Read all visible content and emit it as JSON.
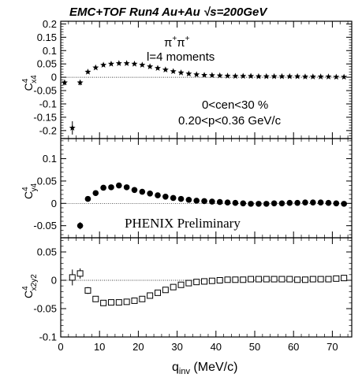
{
  "chart_data": {
    "type": "scatter",
    "title": "EMC+TOF Run4 Au+Au √s=200GeV",
    "xlabel": "q",
    "xlabel_sub": "inv",
    "xlabel_unit": " (MeV/c)",
    "xlim": [
      0,
      75
    ],
    "xticks": [
      "0",
      "10",
      "20",
      "30",
      "40",
      "50",
      "60",
      "70"
    ],
    "panels": [
      {
        "name": "Cx4",
        "ylabel_main": "C",
        "ylabel_sup": "4",
        "ylabel_sub": "x4",
        "ylim": [
          -0.23,
          0.21
        ],
        "yticks": [
          0.2,
          0.15,
          0.1,
          0.05,
          0,
          -0.05,
          -0.1,
          -0.15,
          -0.2
        ],
        "ytick_labels": [
          "0.2",
          "0.15",
          "0.1",
          "0.05",
          "0",
          "-0.05",
          "-0.1",
          "-0.15",
          "-0.2"
        ],
        "marker": "star",
        "x": [
          1,
          3,
          5,
          7,
          9,
          11,
          13,
          15,
          17,
          19,
          21,
          23,
          25,
          27,
          29,
          31,
          33,
          35,
          37,
          39,
          41,
          43,
          45,
          47,
          49,
          51,
          53,
          55,
          57,
          59,
          61,
          63,
          65,
          67,
          69,
          71,
          73
        ],
        "y": [
          -0.02,
          -0.19,
          -0.02,
          0.02,
          0.036,
          0.046,
          0.05,
          0.052,
          0.052,
          0.05,
          0.046,
          0.04,
          0.034,
          0.028,
          0.022,
          0.017,
          0.013,
          0.01,
          0.008,
          0.007,
          0.006,
          0.005,
          0.004,
          0.004,
          0.004,
          0.003,
          0.003,
          0.003,
          0.003,
          0.003,
          0.003,
          0.002,
          0.002,
          0.002,
          0.002,
          0.001,
          0.001
        ],
        "yerr": [
          0.01,
          0.025,
          0.01,
          0.006,
          0.005,
          0.004,
          0.004,
          0.003,
          0.003,
          0.003,
          0.003,
          0.003,
          0.003,
          0.003,
          0.003,
          0.003,
          0.003,
          0.003,
          0.003,
          0.003,
          0.003,
          0.003,
          0.003,
          0.003,
          0.003,
          0.003,
          0.003,
          0.003,
          0.003,
          0.003,
          0.003,
          0.003,
          0.003,
          0.003,
          0.003,
          0.003,
          0.003
        ]
      },
      {
        "name": "Cy4",
        "ylabel_main": "C",
        "ylabel_sup": "4",
        "ylabel_sub": "y4",
        "ylim": [
          -0.077,
          0.145
        ],
        "yticks": [
          0.1,
          0.05,
          0,
          -0.05
        ],
        "ytick_labels": [
          "0.1",
          "0.05",
          "0",
          "-0.05"
        ],
        "marker": "circle",
        "x": [
          5,
          7,
          9,
          11,
          13,
          15,
          17,
          19,
          21,
          23,
          25,
          27,
          29,
          31,
          33,
          35,
          37,
          39,
          41,
          43,
          45,
          47,
          49,
          51,
          53,
          55,
          57,
          59,
          61,
          63,
          65,
          67,
          69,
          71,
          73
        ],
        "y": [
          -0.05,
          0.01,
          0.023,
          0.035,
          0.036,
          0.04,
          0.036,
          0.03,
          0.026,
          0.022,
          0.018,
          0.015,
          0.012,
          0.01,
          0.008,
          0.006,
          0.005,
          0.004,
          0.003,
          0.002,
          0.001,
          0,
          -0.001,
          -0.001,
          -0.001,
          0,
          0,
          0.001,
          0.001,
          0.002,
          0.002,
          0.002,
          0.001,
          0,
          -0.001
        ],
        "yerr": [
          0.008,
          0.005,
          0.004,
          0.003,
          0.003,
          0.003,
          0.003,
          0.003,
          0.003,
          0.003,
          0.003,
          0.003,
          0.003,
          0.003,
          0.003,
          0.003,
          0.003,
          0.003,
          0.003,
          0.003,
          0.003,
          0.003,
          0.003,
          0.003,
          0.003,
          0.003,
          0.003,
          0.003,
          0.003,
          0.003,
          0.003,
          0.003,
          0.003,
          0.003,
          0.003
        ]
      },
      {
        "name": "Cx2y2",
        "ylabel_main": "C",
        "ylabel_sup": "4",
        "ylabel_sub": "x2y2",
        "ylim": [
          -0.1,
          0.075
        ],
        "yticks": [
          0.05,
          0,
          -0.05,
          -0.1
        ],
        "ytick_labels": [
          "0.05",
          "0",
          "-0.05",
          "-0.1"
        ],
        "marker": "square",
        "x": [
          3,
          5,
          7,
          9,
          11,
          13,
          15,
          17,
          19,
          21,
          23,
          25,
          27,
          29,
          31,
          33,
          35,
          37,
          39,
          41,
          43,
          45,
          47,
          49,
          51,
          53,
          55,
          57,
          59,
          61,
          63,
          65,
          67,
          69,
          71,
          73
        ],
        "y": [
          0.005,
          0.012,
          -0.018,
          -0.033,
          -0.04,
          -0.039,
          -0.039,
          -0.038,
          -0.036,
          -0.033,
          -0.027,
          -0.022,
          -0.017,
          -0.012,
          -0.008,
          -0.005,
          -0.003,
          -0.002,
          -0.001,
          0,
          0.001,
          0.001,
          0.001,
          0.002,
          0.002,
          0.002,
          0.002,
          0.002,
          0.002,
          0.001,
          0.001,
          0.002,
          0.002,
          0.002,
          0.003,
          0.004
        ],
        "yerr": [
          0.014,
          0.009,
          0.006,
          0.005,
          0.004,
          0.004,
          0.004,
          0.003,
          0.003,
          0.003,
          0.003,
          0.003,
          0.003,
          0.003,
          0.003,
          0.003,
          0.003,
          0.003,
          0.003,
          0.003,
          0.003,
          0.003,
          0.003,
          0.003,
          0.003,
          0.003,
          0.003,
          0.003,
          0.003,
          0.003,
          0.003,
          0.003,
          0.003,
          0.003,
          0.003,
          0.003
        ]
      }
    ],
    "annotations": {
      "pion_symbol": "π",
      "pion_charge": "+",
      "moments": "l=4 moments",
      "centrality": "0<cen<30 %",
      "momentum": "0.20<p<0.36 GeV/c",
      "preliminary": "PHENIX Preliminary"
    },
    "grid": false,
    "legend": "none",
    "reference_line": 0
  }
}
